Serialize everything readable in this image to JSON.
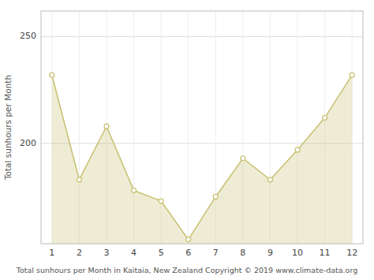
{
  "chart_data": {
    "type": "area",
    "x": [
      1,
      2,
      3,
      4,
      5,
      6,
      7,
      8,
      9,
      10,
      11,
      12
    ],
    "values": [
      232,
      183,
      208,
      178,
      173,
      155,
      175,
      193,
      183,
      197,
      212,
      232
    ],
    "color": "#c8c070",
    "marker": "circle",
    "xlabel": "Total sunhours per Month in Kaitaia, New Zealand Copyright © 2019 www.climate-data.org",
    "ylabel": "Total sunhours per Month",
    "xlim": [
      0.6,
      12.4
    ],
    "xticks": [
      1,
      2,
      3,
      4,
      5,
      6,
      7,
      8,
      9,
      10,
      11,
      12
    ],
    "ylim": [
      153,
      262
    ],
    "yticks": [
      200,
      250
    ],
    "grid": true
  }
}
